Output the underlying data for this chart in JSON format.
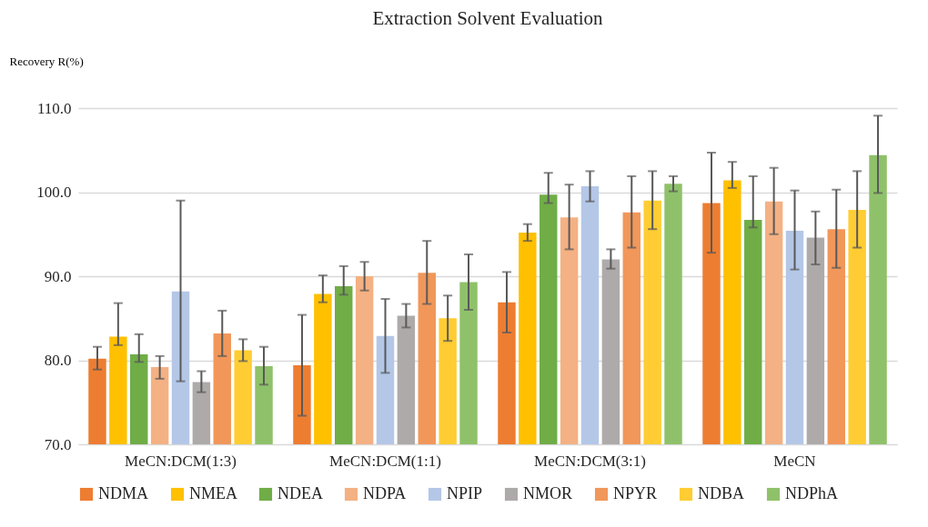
{
  "chart_data": {
    "type": "bar",
    "title": "Extraction Solvent Evaluation",
    "ylabel": "Recovery R(%)",
    "categories": [
      "MeCN:DCM(1:3)",
      "MeCN:DCM(1:1)",
      "MeCN:DCM(3:1)",
      "MeCN"
    ],
    "ylim": [
      70,
      110
    ],
    "yticks": [
      {
        "value": 70,
        "label": "70.0"
      },
      {
        "value": 80,
        "label": "80.0"
      },
      {
        "value": 90,
        "label": "90.0"
      },
      {
        "value": 100,
        "label": "100.0"
      },
      {
        "value": 110,
        "label": "110.0"
      }
    ],
    "grid": "y",
    "legend": "bottom",
    "series": [
      {
        "name": "NDMA",
        "color": "#ed7d31",
        "values": [
          80.2,
          79.4,
          86.9,
          98.7
        ],
        "errors": [
          [
            78.9,
            81.6
          ],
          [
            73.4,
            85.4
          ],
          [
            83.3,
            90.5
          ],
          [
            92.8,
            104.7
          ]
        ]
      },
      {
        "name": "NMEA",
        "color": "#ffc000",
        "values": [
          82.8,
          87.9,
          95.2,
          101.4
        ],
        "errors": [
          [
            81.8,
            86.8
          ],
          [
            86.9,
            90.1
          ],
          [
            94.2,
            96.2
          ],
          [
            100.5,
            103.6
          ]
        ]
      },
      {
        "name": "NDEA",
        "color": "#70ad47",
        "values": [
          80.7,
          88.8,
          99.7,
          96.7
        ],
        "errors": [
          [
            79.8,
            83.1
          ],
          [
            87.8,
            91.2
          ],
          [
            98.7,
            102.3
          ],
          [
            95.8,
            101.9
          ]
        ]
      },
      {
        "name": "NDPA",
        "color": "#f4b183",
        "values": [
          79.2,
          90.0,
          97.0,
          98.9
        ],
        "errors": [
          [
            77.8,
            80.5
          ],
          [
            88.3,
            91.7
          ],
          [
            93.2,
            100.9
          ],
          [
            95.0,
            102.9
          ]
        ]
      },
      {
        "name": "NPIP",
        "color": "#b4c7e7",
        "values": [
          88.2,
          82.9,
          100.7,
          95.4
        ],
        "errors": [
          [
            77.5,
            99.0
          ],
          [
            78.5,
            87.3
          ],
          [
            98.9,
            102.5
          ],
          [
            90.8,
            100.2
          ]
        ]
      },
      {
        "name": "NMOR",
        "color": "#aeaaaa",
        "values": [
          77.4,
          85.3,
          92.0,
          94.6
        ],
        "errors": [
          [
            76.2,
            78.7
          ],
          [
            83.9,
            86.7
          ],
          [
            90.9,
            93.2
          ],
          [
            91.4,
            97.7
          ]
        ]
      },
      {
        "name": "NPYR",
        "color": "#f1975a",
        "values": [
          83.2,
          90.4,
          97.6,
          95.6
        ],
        "errors": [
          [
            80.5,
            85.9
          ],
          [
            86.7,
            94.2
          ],
          [
            93.4,
            101.9
          ],
          [
            91.0,
            100.3
          ]
        ]
      },
      {
        "name": "NDBA",
        "color": "#ffcd33",
        "values": [
          81.2,
          85.0,
          99.0,
          97.9
        ],
        "errors": [
          [
            79.9,
            82.5
          ],
          [
            82.3,
            87.7
          ],
          [
            95.6,
            102.5
          ],
          [
            93.4,
            102.5
          ]
        ]
      },
      {
        "name": "NDPhA",
        "color": "#8fc16a",
        "values": [
          79.3,
          89.3,
          101.0,
          104.4
        ],
        "errors": [
          [
            77.1,
            81.6
          ],
          [
            86.0,
            92.6
          ],
          [
            100.1,
            101.9
          ],
          [
            99.9,
            109.1
          ]
        ]
      }
    ]
  }
}
